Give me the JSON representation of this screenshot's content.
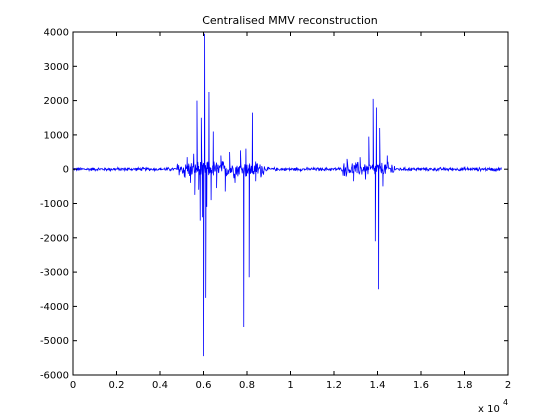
{
  "chart_data": {
    "type": "line",
    "title": "Centralised MMV reconstruction",
    "xlabel": "",
    "ylabel": "",
    "x_multiplier_label": "x 10",
    "x_multiplier_exponent": "4",
    "xlim": [
      0,
      20000
    ],
    "ylim": [
      -6000,
      4000
    ],
    "x_ticks": [
      0,
      2000,
      4000,
      6000,
      8000,
      10000,
      12000,
      14000,
      16000,
      18000,
      20000
    ],
    "x_tick_labels": [
      "0",
      "0.2",
      "0.4",
      "0.6",
      "0.8",
      "1",
      "1.2",
      "1.4",
      "1.6",
      "1.8",
      "2"
    ],
    "y_ticks": [
      -6000,
      -5000,
      -4000,
      -3000,
      -2000,
      -1000,
      0,
      1000,
      2000,
      3000,
      4000
    ],
    "y_tick_labels": [
      "-6000",
      "-5000",
      "-4000",
      "-3000",
      "-2000",
      "-1000",
      "0",
      "1000",
      "2000",
      "3000",
      "4000"
    ],
    "grid": false,
    "legend": null,
    "series_color": "#0000ff",
    "x_extent": [
      0,
      19700
    ],
    "noise_amplitude": 60,
    "active_regions": [
      {
        "x_range": [
          4800,
          8800
        ],
        "amplitude": 300
      },
      {
        "x_range": [
          12400,
          14800
        ],
        "amplitude": 250
      }
    ],
    "spikes": [
      {
        "x": 5150,
        "y": -250
      },
      {
        "x": 5250,
        "y": 350
      },
      {
        "x": 5400,
        "y": -400
      },
      {
        "x": 5550,
        "y": 450
      },
      {
        "x": 5600,
        "y": -750
      },
      {
        "x": 5700,
        "y": 2000
      },
      {
        "x": 5780,
        "y": -600
      },
      {
        "x": 5850,
        "y": -1500
      },
      {
        "x": 5900,
        "y": 1500
      },
      {
        "x": 5950,
        "y": -1400
      },
      {
        "x": 6000,
        "y": -5450
      },
      {
        "x": 6050,
        "y": 3950
      },
      {
        "x": 6100,
        "y": -3750
      },
      {
        "x": 6150,
        "y": -1100
      },
      {
        "x": 6250,
        "y": 2250
      },
      {
        "x": 6350,
        "y": -900
      },
      {
        "x": 6450,
        "y": 1100
      },
      {
        "x": 6600,
        "y": -550
      },
      {
        "x": 6800,
        "y": 400
      },
      {
        "x": 7000,
        "y": -650
      },
      {
        "x": 7200,
        "y": 500
      },
      {
        "x": 7450,
        "y": -400
      },
      {
        "x": 7700,
        "y": 550
      },
      {
        "x": 7850,
        "y": -4600
      },
      {
        "x": 7950,
        "y": 600
      },
      {
        "x": 8100,
        "y": -3150
      },
      {
        "x": 8250,
        "y": 1650
      },
      {
        "x": 8400,
        "y": -350
      },
      {
        "x": 12600,
        "y": 300
      },
      {
        "x": 12900,
        "y": -350
      },
      {
        "x": 13200,
        "y": 350
      },
      {
        "x": 13450,
        "y": -300
      },
      {
        "x": 13600,
        "y": 950
      },
      {
        "x": 13800,
        "y": 2050
      },
      {
        "x": 13900,
        "y": -2100
      },
      {
        "x": 13950,
        "y": 1800
      },
      {
        "x": 14050,
        "y": -3500
      },
      {
        "x": 14100,
        "y": 1200
      },
      {
        "x": 14250,
        "y": -500
      },
      {
        "x": 14450,
        "y": 400
      }
    ]
  }
}
